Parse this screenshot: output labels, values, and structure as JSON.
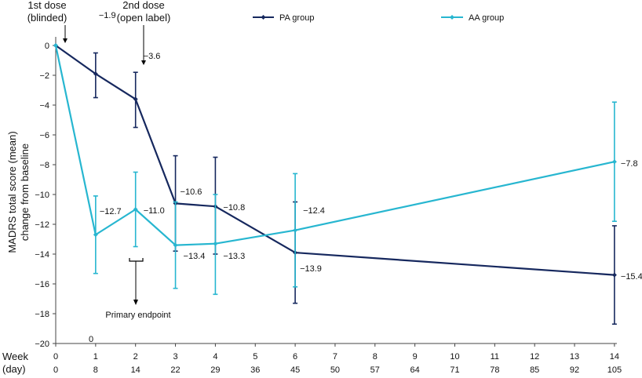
{
  "chart_data": {
    "type": "line",
    "ylabel_lines": [
      "MADRS total score (mean)",
      "change from baseline"
    ],
    "xlabel_week": "Week",
    "xlabel_day": "(day)",
    "ylim": [
      -20,
      0
    ],
    "y_ticks": [
      0,
      -2,
      -4,
      -6,
      -8,
      -10,
      -12,
      -14,
      -16,
      -18,
      -20
    ],
    "x_weeks": [
      0,
      1,
      2,
      3,
      4,
      5,
      6,
      7,
      8,
      9,
      10,
      11,
      12,
      13,
      14
    ],
    "x_days": [
      "0",
      "8",
      "14",
      "22",
      "29",
      "36",
      "45",
      "50",
      "57",
      "64",
      "71",
      "78",
      "85",
      "92",
      "105"
    ],
    "legend_position": "top",
    "series": [
      {
        "name": "PA group",
        "color": "#16285e",
        "x": [
          0,
          1,
          2,
          3,
          4,
          6,
          14
        ],
        "y": [
          0,
          -1.9,
          -3.6,
          -10.6,
          -10.8,
          -13.9,
          -15.4
        ],
        "err_low": [
          0,
          -3.5,
          -5.5,
          -13.8,
          -14.0,
          -17.3,
          -18.7
        ],
        "err_high": [
          0,
          -0.5,
          -1.8,
          -7.4,
          -7.5,
          -10.5,
          -12.1
        ],
        "labels": [
          "",
          "−1.9",
          "−3.6",
          "−10.6",
          "−10.8",
          "−13.9",
          "−15.4"
        ]
      },
      {
        "name": "AA group",
        "color": "#27b6d0",
        "x": [
          0,
          1,
          2,
          3,
          4,
          6,
          14
        ],
        "y": [
          0,
          -12.7,
          -11.0,
          -13.4,
          -13.3,
          -12.4,
          -7.8
        ],
        "err_low": [
          0,
          -15.3,
          -13.5,
          -16.3,
          -16.7,
          -16.2,
          -11.8
        ],
        "err_high": [
          0,
          -10.1,
          -8.5,
          -10.5,
          -10.0,
          -8.6,
          -3.8
        ],
        "labels": [
          "",
          "−12.7",
          "−11.0",
          "−13.4",
          "−13.3",
          "−12.4",
          "−7.8"
        ]
      }
    ],
    "annotations": {
      "first_dose": [
        "1st dose",
        "(blinded)"
      ],
      "second_dose": [
        "2nd dose",
        "(open label)"
      ],
      "primary_endpoint": "Primary endpoint",
      "baseline_zero": "0"
    }
  }
}
